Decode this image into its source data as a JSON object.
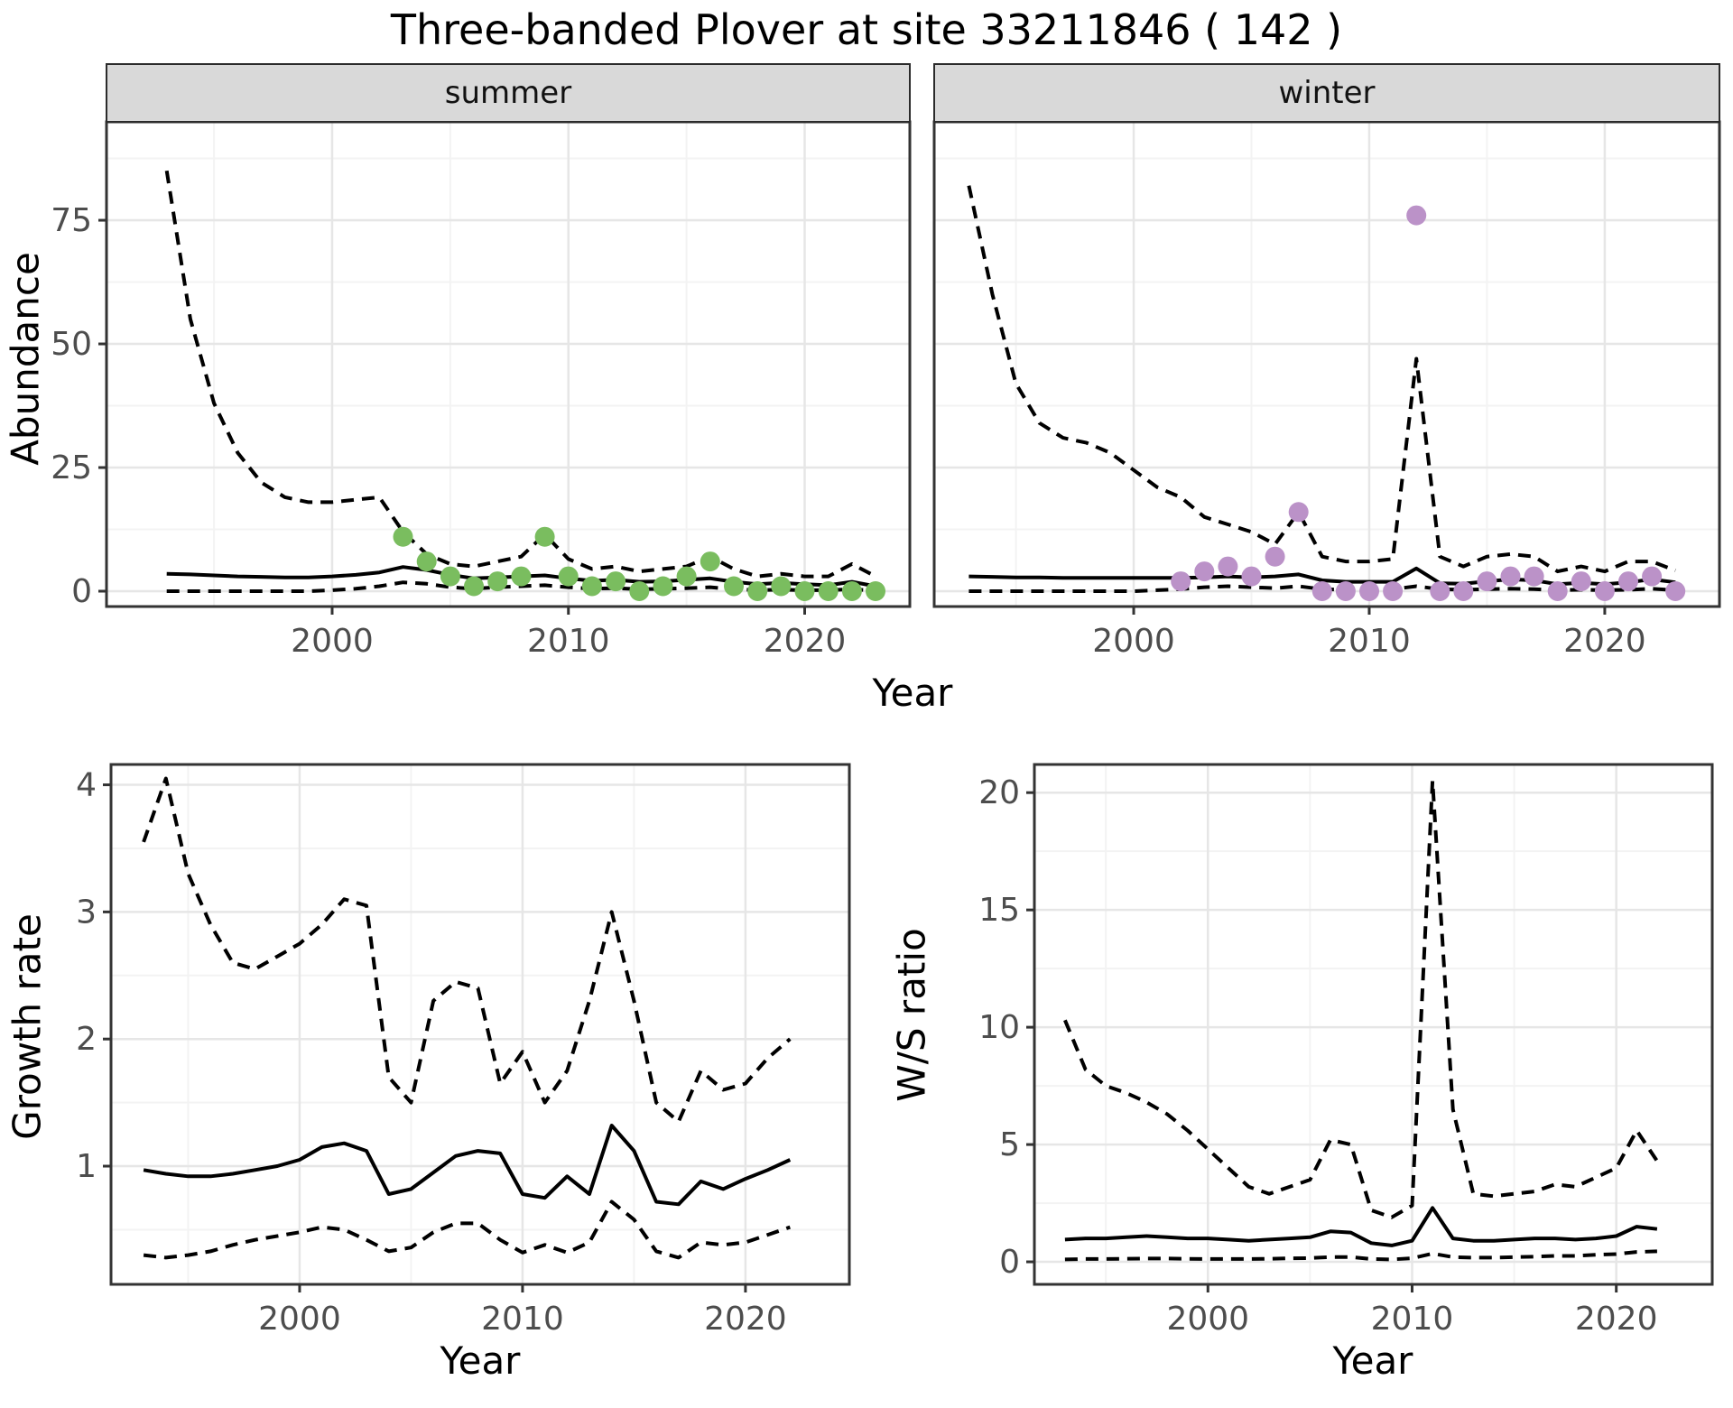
{
  "title": "Three-banded Plover at site 33211846 ( 142 )",
  "colors": {
    "summer_point": "#7ABD5F",
    "winter_point": "#BB92C8",
    "line": "#000000",
    "grid_major": "#e6e6e6",
    "grid_minor": "#f3f3f3",
    "panel_border": "#333333",
    "strip_bg": "#d9d9d9",
    "tick_text": "#4d4d4d"
  },
  "axis_titles": {
    "abundance": "Abundance",
    "year_top": "Year",
    "growth": "Growth rate",
    "year_bottom_left": "Year",
    "ws": "W/S ratio",
    "year_bottom_right": "Year"
  },
  "chart_data": [
    {
      "id": "abundance-summer",
      "type": "line",
      "facet": "summer",
      "ylabel": "Abundance",
      "xlabel": "Year",
      "show_y_labels": true,
      "point_color_key": "summer_point",
      "x": [
        1993,
        1994,
        1995,
        1996,
        1997,
        1998,
        1999,
        2000,
        2001,
        2002,
        2003,
        2004,
        2005,
        2006,
        2007,
        2008,
        2009,
        2010,
        2011,
        2012,
        2013,
        2014,
        2015,
        2016,
        2017,
        2018,
        2019,
        2020,
        2021,
        2022,
        2023
      ],
      "series": [
        {
          "name": "upper_ci",
          "style": "dashed",
          "values": [
            85,
            55,
            38,
            28,
            22,
            19,
            18,
            18,
            18.5,
            19,
            12,
            7.5,
            5.5,
            5,
            6,
            7,
            11.5,
            6.5,
            4.5,
            5,
            4,
            4.5,
            5,
            7,
            4.5,
            3,
            3.5,
            3,
            3,
            5.5,
            3
          ]
        },
        {
          "name": "median",
          "style": "solid",
          "values": [
            3.5,
            3.4,
            3.2,
            3.0,
            2.9,
            2.8,
            2.8,
            3.0,
            3.3,
            3.8,
            4.9,
            4.3,
            3.3,
            2.6,
            2.8,
            3.0,
            3.2,
            2.6,
            2.1,
            2.3,
            1.9,
            2.0,
            2.3,
            2.6,
            1.9,
            1.4,
            1.7,
            1.4,
            1.2,
            1.9,
            1.0
          ]
        },
        {
          "name": "lower_ci",
          "style": "dashed",
          "values": [
            0,
            0,
            0,
            0,
            0,
            0,
            0,
            0.2,
            0.5,
            1,
            1.8,
            1.5,
            0.8,
            0.5,
            0.8,
            1,
            1.2,
            0.8,
            0.5,
            0.6,
            0.4,
            0.5,
            0.6,
            0.8,
            0.4,
            0.2,
            0.3,
            0.2,
            0.2,
            0.4,
            0.1
          ]
        }
      ],
      "points": {
        "years": [
          2003,
          2004,
          2005,
          2006,
          2007,
          2008,
          2009,
          2010,
          2011,
          2012,
          2013,
          2014,
          2015,
          2016,
          2017,
          2018,
          2019,
          2020,
          2021,
          2022,
          2023
        ],
        "values": [
          11,
          6,
          3,
          1,
          2,
          3,
          11,
          3,
          1,
          2,
          0,
          1,
          3,
          6,
          1,
          0,
          1,
          0,
          0,
          0,
          0
        ]
      },
      "x_ticks": [
        2000,
        2010,
        2020
      ],
      "x_minor": [
        1995,
        2005,
        2015
      ],
      "y_ticks": [
        0,
        25,
        50,
        75
      ],
      "y_minor": [
        12.5,
        37.5,
        62.5,
        87.5
      ],
      "ylim": [
        0,
        85
      ]
    },
    {
      "id": "abundance-winter",
      "type": "line",
      "facet": "winter",
      "ylabel": "Abundance",
      "xlabel": "Year",
      "show_y_labels": false,
      "point_color_key": "winter_point",
      "x": [
        1993,
        1994,
        1995,
        1996,
        1997,
        1998,
        1999,
        2000,
        2001,
        2002,
        2003,
        2004,
        2005,
        2006,
        2007,
        2008,
        2009,
        2010,
        2011,
        2012,
        2013,
        2014,
        2015,
        2016,
        2017,
        2018,
        2019,
        2020,
        2021,
        2022,
        2023
      ],
      "series": [
        {
          "name": "upper_ci",
          "style": "dashed",
          "values": [
            82,
            60,
            42,
            34,
            31,
            30,
            28,
            24.5,
            21,
            19,
            15,
            13.5,
            12,
            9.5,
            16,
            7,
            6,
            6,
            6.5,
            47,
            7,
            5,
            7,
            7.5,
            7,
            4,
            5,
            4,
            6,
            6,
            4.2
          ]
        },
        {
          "name": "median",
          "style": "solid",
          "values": [
            3.0,
            2.9,
            2.8,
            2.8,
            2.7,
            2.7,
            2.7,
            2.7,
            2.7,
            2.7,
            2.8,
            3.0,
            2.8,
            3.0,
            3.4,
            2.2,
            1.9,
            1.9,
            1.9,
            4.6,
            1.6,
            1.5,
            2.0,
            2.4,
            2.2,
            1.4,
            1.7,
            1.4,
            1.8,
            2.4,
            1.8
          ]
        },
        {
          "name": "lower_ci",
          "style": "dashed",
          "values": [
            0,
            0,
            0,
            0,
            0,
            0,
            0,
            0,
            0.2,
            0.4,
            0.8,
            1,
            0.8,
            0.6,
            1,
            0.4,
            0.3,
            0.3,
            0.4,
            1,
            0.4,
            0.3,
            0.4,
            0.5,
            0.4,
            0.2,
            0.3,
            0.2,
            0.3,
            0.5,
            0.2
          ]
        }
      ],
      "points": {
        "years": [
          2002,
          2003,
          2004,
          2005,
          2006,
          2007,
          2008,
          2009,
          2010,
          2011,
          2012,
          2013,
          2014,
          2015,
          2016,
          2017,
          2018,
          2019,
          2020,
          2021,
          2022,
          2023
        ],
        "values": [
          2,
          4,
          5,
          3,
          7,
          16,
          0,
          0,
          0,
          0,
          76,
          0,
          0,
          2,
          3,
          3,
          0,
          2,
          0,
          2,
          3,
          0
        ]
      },
      "x_ticks": [
        2000,
        2010,
        2020
      ],
      "x_minor": [
        1995,
        2005,
        2015
      ],
      "y_ticks": [
        0,
        25,
        50,
        75
      ],
      "y_minor": [
        12.5,
        37.5,
        62.5,
        87.5
      ],
      "ylim": [
        0,
        85
      ]
    },
    {
      "id": "growth-rate",
      "type": "line",
      "facet": "",
      "ylabel": "Growth rate",
      "xlabel": "Year",
      "show_y_labels": true,
      "point_color_key": "",
      "x": [
        1993,
        1994,
        1995,
        1996,
        1997,
        1998,
        1999,
        2000,
        2001,
        2002,
        2003,
        2004,
        2005,
        2006,
        2007,
        2008,
        2009,
        2010,
        2011,
        2012,
        2013,
        2014,
        2015,
        2016,
        2017,
        2018,
        2019,
        2020,
        2021,
        2022
      ],
      "series": [
        {
          "name": "upper_ci",
          "style": "dashed",
          "values": [
            3.55,
            4.05,
            3.3,
            2.9,
            2.6,
            2.55,
            2.65,
            2.75,
            2.9,
            3.1,
            3.05,
            1.7,
            1.5,
            2.3,
            2.45,
            2.4,
            1.65,
            1.9,
            1.5,
            1.75,
            2.3,
            3.0,
            2.3,
            1.5,
            1.35,
            1.75,
            1.6,
            1.65,
            1.85,
            2.0
          ]
        },
        {
          "name": "median",
          "style": "solid",
          "values": [
            0.97,
            0.94,
            0.92,
            0.92,
            0.94,
            0.97,
            1.0,
            1.05,
            1.15,
            1.18,
            1.12,
            0.78,
            0.82,
            0.95,
            1.08,
            1.12,
            1.1,
            0.78,
            0.75,
            0.92,
            0.78,
            1.32,
            1.12,
            0.72,
            0.7,
            0.88,
            0.82,
            0.9,
            0.97,
            1.05
          ]
        },
        {
          "name": "lower_ci",
          "style": "dashed",
          "values": [
            0.3,
            0.28,
            0.3,
            0.33,
            0.38,
            0.42,
            0.45,
            0.48,
            0.52,
            0.5,
            0.42,
            0.33,
            0.36,
            0.48,
            0.55,
            0.55,
            0.42,
            0.32,
            0.38,
            0.32,
            0.4,
            0.72,
            0.58,
            0.33,
            0.28,
            0.4,
            0.38,
            0.4,
            0.46,
            0.52
          ]
        }
      ],
      "points": {
        "years": [],
        "values": []
      },
      "x_ticks": [
        2000,
        2010,
        2020
      ],
      "x_minor": [
        1995,
        2005,
        2015
      ],
      "y_ticks": [
        1,
        2,
        3,
        4
      ],
      "y_minor": [
        0.5,
        1.5,
        2.5,
        3.5
      ],
      "ylim": [
        0.25,
        4.1
      ]
    },
    {
      "id": "ws-ratio",
      "type": "line",
      "facet": "",
      "ylabel": "W/S ratio",
      "xlabel": "Year",
      "show_y_labels": true,
      "point_color_key": "",
      "x": [
        1993,
        1994,
        1995,
        1996,
        1997,
        1998,
        1999,
        2000,
        2001,
        2002,
        2003,
        2004,
        2005,
        2006,
        2007,
        2008,
        2009,
        2010,
        2011,
        2012,
        2013,
        2014,
        2015,
        2016,
        2017,
        2018,
        2019,
        2020,
        2021,
        2022
      ],
      "series": [
        {
          "name": "upper_ci",
          "style": "dashed",
          "values": [
            10.3,
            8.2,
            7.5,
            7.2,
            6.8,
            6.3,
            5.6,
            4.8,
            4.0,
            3.2,
            2.9,
            3.2,
            3.5,
            5.2,
            5.0,
            2.2,
            1.9,
            2.4,
            20.5,
            6.5,
            2.9,
            2.8,
            2.9,
            3.0,
            3.3,
            3.2,
            3.6,
            4.0,
            5.6,
            4.3
          ]
        },
        {
          "name": "median",
          "style": "solid",
          "values": [
            0.95,
            1.0,
            1.0,
            1.05,
            1.1,
            1.05,
            1.0,
            1.0,
            0.95,
            0.9,
            0.95,
            1.0,
            1.05,
            1.3,
            1.25,
            0.8,
            0.7,
            0.9,
            2.3,
            1.0,
            0.9,
            0.9,
            0.95,
            1.0,
            1.0,
            0.95,
            1.0,
            1.1,
            1.5,
            1.4
          ]
        },
        {
          "name": "lower_ci",
          "style": "dashed",
          "values": [
            0.1,
            0.12,
            0.12,
            0.13,
            0.14,
            0.14,
            0.13,
            0.12,
            0.12,
            0.12,
            0.13,
            0.15,
            0.16,
            0.2,
            0.2,
            0.12,
            0.1,
            0.15,
            0.35,
            0.2,
            0.18,
            0.18,
            0.2,
            0.22,
            0.25,
            0.25,
            0.3,
            0.33,
            0.42,
            0.45
          ]
        }
      ],
      "points": {
        "years": [],
        "values": []
      },
      "x_ticks": [
        2000,
        2010,
        2020
      ],
      "x_minor": [
        1995,
        2005,
        2015
      ],
      "y_ticks": [
        0,
        5,
        10,
        15,
        20
      ],
      "y_minor": [
        2.5,
        7.5,
        12.5,
        17.5
      ],
      "ylim": [
        0,
        20.5
      ]
    }
  ]
}
